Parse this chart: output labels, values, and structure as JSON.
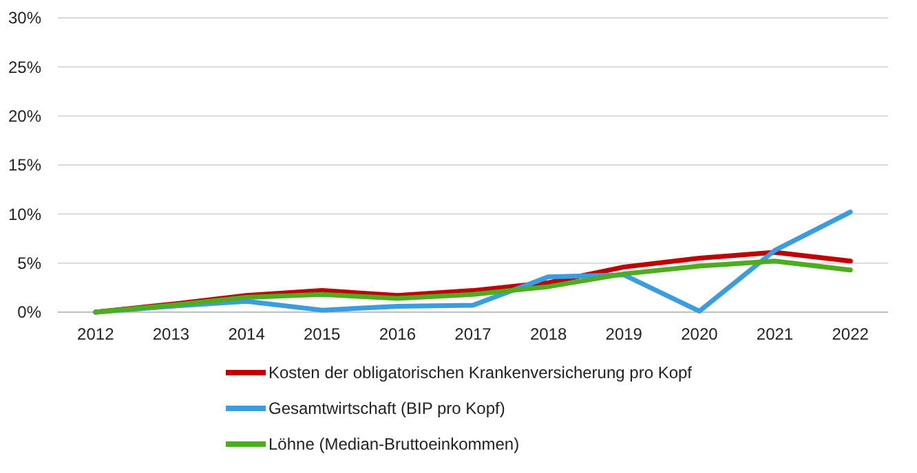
{
  "chart_data": {
    "type": "line",
    "categories": [
      "2012",
      "2013",
      "2014",
      "2015",
      "2016",
      "2017",
      "2018",
      "2019",
      "2020",
      "2021",
      "2022"
    ],
    "series": [
      {
        "name": "Kosten der obligatorischen Krankenversicherung pro Kopf",
        "color": "#c00000",
        "values": [
          0,
          0.8,
          1.7,
          2.2,
          1.7,
          2.2,
          3.0,
          4.6,
          5.5,
          6.1,
          5.2
        ]
      },
      {
        "name": "Gesamtwirtschaft (BIP pro Kopf)",
        "color": "#3a9de0",
        "values": [
          0,
          0.6,
          1.1,
          0.2,
          0.6,
          0.7,
          3.6,
          3.8,
          0.1,
          6.3,
          10.2
        ]
      },
      {
        "name": "Löhne (Median-Bruttoeinkommen)",
        "color": "#4cae1e",
        "values": [
          0,
          0.7,
          1.5,
          1.8,
          1.4,
          1.8,
          2.6,
          3.9,
          4.7,
          5.2,
          4.3
        ]
      }
    ],
    "ylim": [
      0,
      30
    ],
    "yticks": [
      {
        "value": 0,
        "label": "0%"
      },
      {
        "value": 5,
        "label": "5%"
      },
      {
        "value": 10,
        "label": "10%"
      },
      {
        "value": 15,
        "label": "15%"
      },
      {
        "value": 20,
        "label": "20%"
      },
      {
        "value": 25,
        "label": "25%"
      },
      {
        "value": 30,
        "label": "30%"
      }
    ],
    "grid": "y",
    "legend": "bottom"
  }
}
